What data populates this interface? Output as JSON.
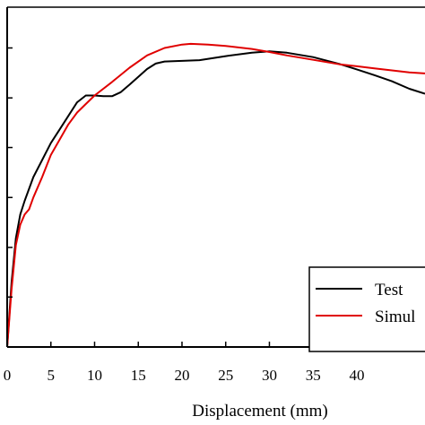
{
  "chart_data": {
    "type": "line",
    "title": "",
    "xlabel": "Displacement (mm)",
    "ylabel": "",
    "xlim": [
      0,
      47.8
    ],
    "ylim": [
      0,
      1.0
    ],
    "x_ticks": [
      0,
      5,
      10,
      15,
      20,
      25,
      30,
      35,
      40
    ],
    "x_tick_labels": [
      "0",
      "5",
      "10",
      "15",
      "20",
      "25",
      "30",
      "35",
      "40"
    ],
    "y_ticks": [
      0.147,
      0.293,
      0.44,
      0.587,
      0.733,
      0.88
    ],
    "grid": false,
    "legend": {
      "placement": "bottom-right",
      "entries": [
        "Test",
        "Simul"
      ]
    },
    "series": [
      {
        "name": "Test",
        "color": "#000000",
        "x": [
          0,
          0.5,
          1,
          1.5,
          2,
          3,
          4,
          5,
          6,
          7,
          8,
          9,
          10,
          11,
          12,
          13,
          14,
          15,
          16,
          17,
          18,
          20,
          22,
          25,
          28,
          30,
          32,
          35,
          38,
          40,
          42,
          44,
          46,
          47.8
        ],
        "y": [
          0,
          0.19,
          0.32,
          0.39,
          0.43,
          0.5,
          0.55,
          0.6,
          0.64,
          0.68,
          0.72,
          0.74,
          0.74,
          0.738,
          0.738,
          0.75,
          0.772,
          0.795,
          0.818,
          0.834,
          0.84,
          0.842,
          0.844,
          0.856,
          0.866,
          0.87,
          0.866,
          0.853,
          0.833,
          0.817,
          0.8,
          0.782,
          0.76,
          0.745
        ]
      },
      {
        "name": "Simul",
        "color": "#e00000",
        "x": [
          0,
          0.5,
          1,
          1.5,
          2,
          2.5,
          3,
          4,
          5,
          6,
          7,
          8,
          9,
          10,
          12,
          14,
          16,
          18,
          20,
          21,
          23,
          25,
          28,
          30,
          32,
          35,
          38,
          40,
          42,
          44,
          46,
          47.8
        ],
        "y": [
          0,
          0.17,
          0.3,
          0.36,
          0.39,
          0.405,
          0.44,
          0.5,
          0.565,
          0.61,
          0.655,
          0.69,
          0.715,
          0.74,
          0.78,
          0.822,
          0.858,
          0.88,
          0.89,
          0.892,
          0.89,
          0.886,
          0.877,
          0.868,
          0.858,
          0.845,
          0.832,
          0.826,
          0.82,
          0.814,
          0.808,
          0.805
        ]
      }
    ]
  }
}
